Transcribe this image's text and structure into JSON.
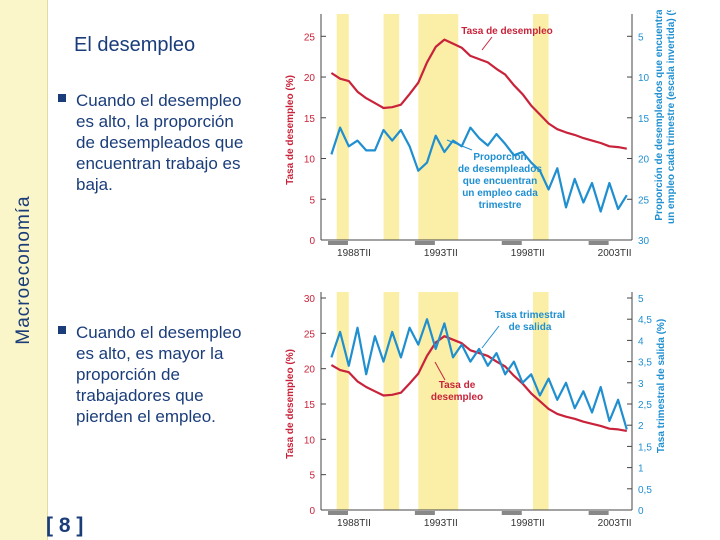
{
  "sidebar": {
    "label": "Macroeconomía"
  },
  "slide": {
    "title": "El desempleo",
    "page_number": "[ 8 ]"
  },
  "bullets": [
    "Cuando el desempleo es alto, la proporción de desempleados que encuentran trabajo es baja.",
    "Cuando el desempleo es alto, es mayor la proporción de trabajadores que pierden el empleo."
  ],
  "colors": {
    "unemployment": "#c8233a",
    "other": "#1f8fd0",
    "recession": "#fbefa8",
    "text": "#1a3d7a"
  },
  "chart_data": [
    {
      "type": "line",
      "left_axis_label": "Tasa de desempleo (%)",
      "right_axis_label": "Proporción de desempleados que encuentran un empleo cada trimestre (escala invertida) (%)",
      "left_ticks": [
        "0",
        "5",
        "10",
        "15",
        "20",
        "25"
      ],
      "right_ticks": [
        "5",
        "10",
        "15",
        "20",
        "25",
        "30"
      ],
      "x_ticks": [
        "1988TII",
        "1993TII",
        "1998TII",
        "2003TII"
      ],
      "ylim_left": [
        0,
        27
      ],
      "ylim_right": [
        3,
        30
      ],
      "right_inverted": true,
      "recessions": [
        [
          1987.3,
          1988.0
        ],
        [
          1990.0,
          1990.9
        ],
        [
          1992.0,
          1994.3
        ],
        [
          1998.6,
          1999.5
        ]
      ],
      "x": [
        1987.0,
        1987.5,
        1988.0,
        1988.5,
        1989.0,
        1989.5,
        1990.0,
        1990.5,
        1991.0,
        1991.5,
        1992.0,
        1992.5,
        1993.0,
        1993.5,
        1994.0,
        1994.5,
        1995.0,
        1995.5,
        1996.0,
        1996.5,
        1997.0,
        1997.5,
        1998.0,
        1998.5,
        1999.0,
        1999.5,
        2000.0,
        2000.5,
        2001.0,
        2001.5,
        2002.0,
        2002.5,
        2003.0,
        2003.5,
        2004.0
      ],
      "annotations": [
        "Tasa de desempleo",
        "Proporción de desempleados que encuentran un empleo cada trimestre"
      ],
      "series": [
        {
          "name": "Tasa de desempleo",
          "values": [
            20.5,
            19.8,
            19.5,
            18.2,
            17.4,
            16.8,
            16.2,
            16.3,
            16.6,
            17.9,
            19.3,
            21.8,
            23.7,
            24.6,
            24.1,
            23.6,
            22.6,
            22.2,
            21.8,
            21.0,
            20.3,
            19.0,
            17.9,
            16.5,
            15.4,
            14.3,
            13.6,
            13.2,
            12.9,
            12.5,
            12.2,
            11.9,
            11.5,
            11.4,
            11.2
          ]
        },
        {
          "name": "Proporción de desempleados que encuentran un empleo cada trimestre",
          "values": [
            19.5,
            16.2,
            18.5,
            17.8,
            19.0,
            19.0,
            16.5,
            17.8,
            16.5,
            18.5,
            21.5,
            20.5,
            17.2,
            19.2,
            17.8,
            18.5,
            16.2,
            17.5,
            18.4,
            17.0,
            18.2,
            19.6,
            19.2,
            20.5,
            21.5,
            23.8,
            21.2,
            26.0,
            22.5,
            25.4,
            23.0,
            26.5,
            23.0,
            26.2,
            24.5
          ]
        }
      ]
    },
    {
      "type": "line",
      "left_axis_label": "Tasa de desempleo (%)",
      "right_axis_label": "Tasa trimestral de salida (%)",
      "left_ticks": [
        "0",
        "5",
        "10",
        "15",
        "20",
        "25",
        "30"
      ],
      "right_ticks": [
        "0",
        "0,5",
        "1",
        "1,5",
        "2",
        "2,5",
        "3",
        "3,5",
        "4",
        "4,5",
        "5"
      ],
      "x_ticks": [
        "1988TII",
        "1993TII",
        "1998TII",
        "2003TII"
      ],
      "ylim_left": [
        0,
        30
      ],
      "ylim_right": [
        0,
        5
      ],
      "right_inverted": false,
      "recessions": [
        [
          1987.3,
          1988.0
        ],
        [
          1990.0,
          1990.9
        ],
        [
          1992.0,
          1994.3
        ],
        [
          1998.6,
          1999.5
        ]
      ],
      "x": [
        1987.0,
        1987.5,
        1988.0,
        1988.5,
        1989.0,
        1989.5,
        1990.0,
        1990.5,
        1991.0,
        1991.5,
        1992.0,
        1992.5,
        1993.0,
        1993.5,
        1994.0,
        1994.5,
        1995.0,
        1995.5,
        1996.0,
        1996.5,
        1997.0,
        1997.5,
        1998.0,
        1998.5,
        1999.0,
        1999.5,
        2000.0,
        2000.5,
        2001.0,
        2001.5,
        2002.0,
        2002.5,
        2003.0,
        2003.5,
        2004.0
      ],
      "annotations": [
        "Tasa trimestral de salida",
        "Tasa de desempleo"
      ],
      "series": [
        {
          "name": "Tasa de desempleo",
          "values": [
            20.5,
            19.8,
            19.5,
            18.2,
            17.4,
            16.8,
            16.2,
            16.3,
            16.6,
            17.9,
            19.3,
            21.8,
            23.7,
            24.6,
            24.1,
            23.6,
            22.6,
            22.2,
            21.8,
            21.0,
            20.3,
            19.0,
            17.9,
            16.5,
            15.4,
            14.3,
            13.6,
            13.2,
            12.9,
            12.5,
            12.2,
            11.9,
            11.5,
            11.4,
            11.2
          ]
        },
        {
          "name": "Tasa trimestral de salida",
          "values": [
            3.6,
            4.2,
            3.4,
            4.3,
            3.2,
            4.1,
            3.5,
            4.2,
            3.6,
            4.3,
            3.9,
            4.5,
            3.8,
            4.4,
            3.6,
            3.9,
            3.5,
            3.8,
            3.4,
            3.7,
            3.2,
            3.5,
            3.0,
            3.2,
            2.7,
            3.1,
            2.6,
            3.0,
            2.4,
            2.8,
            2.3,
            2.9,
            2.1,
            2.6,
            1.9
          ]
        }
      ]
    }
  ]
}
